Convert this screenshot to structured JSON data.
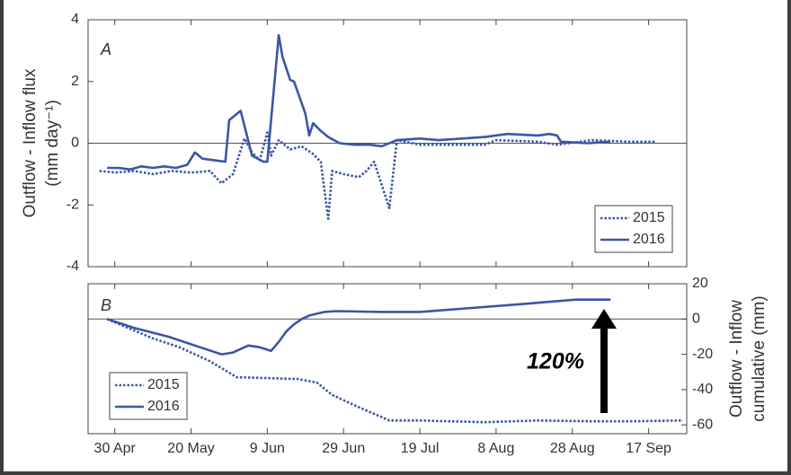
{
  "chart_data": [
    {
      "type": "line",
      "panel_label": "A",
      "y_label": [
        "Outflow - Inflow flux",
        "(mm day⁻¹)"
      ],
      "xlim": [
        113,
        270
      ],
      "xticks": [
        120,
        140,
        160,
        180,
        200,
        220,
        240,
        260
      ],
      "xtick_labels": false,
      "ylim": [
        -4,
        4
      ],
      "yticks": [
        -4,
        -2,
        0,
        2,
        4
      ],
      "yaxis_side": "left",
      "legend": "lower right",
      "series": [
        {
          "name": "2015",
          "color": "#3b55a6",
          "style": "dotted",
          "x": [
            116,
            120,
            125,
            130,
            135,
            140,
            145,
            148,
            151,
            154,
            156,
            158,
            160,
            161,
            163,
            166,
            169,
            172,
            174,
            176,
            177,
            180,
            184,
            186,
            188,
            192,
            194,
            200,
            208,
            217,
            220,
            231,
            236,
            245,
            255,
            262
          ],
          "values": [
            -0.9,
            -0.95,
            -0.9,
            -1.0,
            -0.9,
            -0.95,
            -0.9,
            -1.3,
            -1.0,
            0.15,
            -0.3,
            -0.55,
            0.35,
            -0.4,
            0.1,
            -0.2,
            -0.1,
            -0.35,
            -0.6,
            -2.45,
            -0.9,
            -1.0,
            -1.1,
            -0.9,
            -0.6,
            -2.1,
            0.1,
            -0.05,
            -0.05,
            -0.05,
            0.1,
            0.05,
            -0.05,
            0.1,
            0.05,
            0.05
          ]
        },
        {
          "name": "2016",
          "color": "#3b55a6",
          "style": "solid",
          "x": [
            118,
            121,
            124,
            127,
            130,
            133,
            136,
            139,
            141,
            143,
            146,
            149,
            150,
            153,
            156,
            159,
            160,
            163,
            164,
            166,
            167,
            169,
            170,
            171,
            172,
            174,
            176,
            179,
            183,
            187,
            190,
            194,
            200,
            205,
            211,
            217,
            223,
            231,
            234,
            236,
            237,
            244,
            250
          ],
          "values": [
            -0.8,
            -0.8,
            -0.85,
            -0.75,
            -0.8,
            -0.75,
            -0.8,
            -0.7,
            -0.3,
            -0.5,
            -0.55,
            -0.6,
            0.75,
            1.05,
            -0.4,
            -0.6,
            -0.6,
            3.5,
            2.8,
            2.05,
            2.0,
            1.3,
            0.95,
            0.25,
            0.65,
            0.4,
            0.2,
            0.0,
            -0.05,
            -0.05,
            -0.1,
            0.1,
            0.15,
            0.1,
            0.15,
            0.2,
            0.3,
            0.25,
            0.3,
            0.25,
            0.05,
            0.0,
            0.05
          ]
        }
      ]
    },
    {
      "type": "line",
      "panel_label": "B",
      "y_label": [
        "Outflow - Inflow",
        "cumulative (mm)"
      ],
      "annotation": "120%",
      "xlim": [
        113,
        270
      ],
      "xticks": [
        {
          "value": 120,
          "label": "30 Apr"
        },
        {
          "value": 140,
          "label": "20 May"
        },
        {
          "value": 160,
          "label": "9 Jun"
        },
        {
          "value": 180,
          "label": "29 Jun"
        },
        {
          "value": 200,
          "label": "19 Jul"
        },
        {
          "value": 220,
          "label": "8 Aug"
        },
        {
          "value": 240,
          "label": "28 Aug"
        },
        {
          "value": 260,
          "label": "17 Sep"
        }
      ],
      "xtick_labels": true,
      "ylim": [
        -65,
        20
      ],
      "yticks": [
        -60,
        -40,
        -20,
        0,
        20
      ],
      "yaxis_side": "right",
      "legend": "lower left",
      "series": [
        {
          "name": "2015",
          "color": "#3b55a6",
          "style": "dotted",
          "x": [
            118,
            130,
            137,
            145,
            152,
            160,
            168,
            173,
            177,
            184,
            192,
            200,
            217,
            231,
            245,
            255,
            269
          ],
          "values": [
            0,
            -11,
            -16,
            -24,
            -33,
            -33.5,
            -34,
            -36,
            -43,
            -50,
            -57.5,
            -57.5,
            -58.5,
            -57.5,
            -58,
            -58,
            -57.5
          ]
        },
        {
          "name": "2016",
          "color": "#3b55a6",
          "style": "solid",
          "x": [
            118,
            125,
            134,
            141,
            148,
            151,
            155,
            158,
            161,
            163,
            165,
            167,
            169,
            171,
            175,
            178,
            190,
            200,
            212,
            227,
            241,
            250
          ],
          "values": [
            0,
            -5,
            -10,
            -15,
            -20,
            -19,
            -15,
            -16,
            -18,
            -13,
            -7,
            -3,
            0,
            2,
            4,
            4.5,
            4,
            4,
            6,
            8.5,
            11,
            11
          ]
        }
      ]
    }
  ]
}
